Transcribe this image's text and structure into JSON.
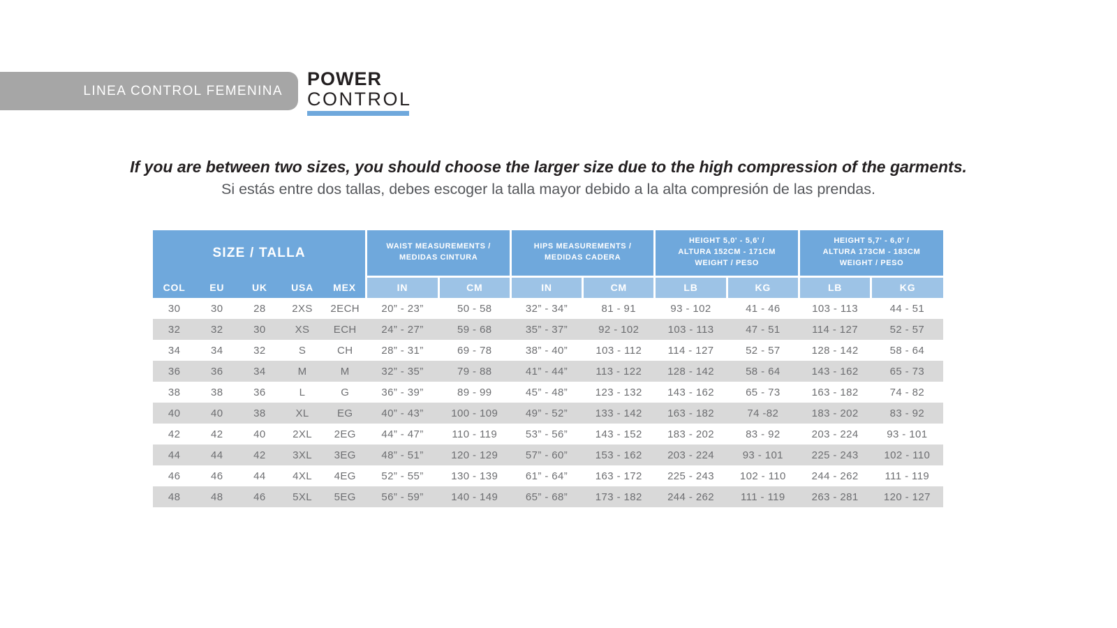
{
  "banner": {
    "label": "LINEA CONTROL FEMENINA",
    "bg_color": "#a6a6a6"
  },
  "logo": {
    "line1": "POWER",
    "line2": "CONTROL",
    "underline_color": "#6fa8dc"
  },
  "notice": {
    "en": "If you are between two sizes, you should choose the larger size due to the high compression of the garments.",
    "es": "Si estás entre dos tallas, debes escoger la talla mayor debido a la alta compresión de las prendas."
  },
  "size_table": {
    "colors": {
      "header_blue": "#6fa8dc",
      "subheader_blue": "#9dc3e6",
      "alt_row_gray": "#d9d9d9",
      "cell_text": "#6d6e71"
    },
    "size_group_label": "SIZE / TALLA",
    "size_columns": [
      "COL",
      "EU",
      "UK",
      "USA",
      "MEX"
    ],
    "groups": [
      {
        "lines": [
          "WAIST MEASUREMENTS /",
          "MEDIDAS CINTURA"
        ],
        "sub": [
          "IN",
          "CM"
        ]
      },
      {
        "lines": [
          "HIPS MEASUREMENTS /",
          "MEDIDAS CADERA"
        ],
        "sub": [
          "IN",
          "CM"
        ]
      },
      {
        "lines": [
          "HEIGHT 5,0' - 5,6' /",
          "ALTURA 152CM - 171CM",
          "WEIGHT / PESO"
        ],
        "sub": [
          "LB",
          "KG"
        ]
      },
      {
        "lines": [
          "HEIGHT 5,7' - 6,0' /",
          "ALTURA 173CM - 183CM",
          "WEIGHT / PESO"
        ],
        "sub": [
          "LB",
          "KG"
        ]
      }
    ],
    "rows": [
      [
        "30",
        "30",
        "28",
        "2XS",
        "2ECH",
        "20” - 23”",
        "50 - 58",
        "32” - 34”",
        "81 - 91",
        "93 - 102",
        "41 - 46",
        "103 - 113",
        "44 - 51"
      ],
      [
        "32",
        "32",
        "30",
        "XS",
        "ECH",
        "24” - 27”",
        "59 - 68",
        "35” - 37”",
        "92 - 102",
        "103 - 113",
        "47 - 51",
        "114 - 127",
        "52 - 57"
      ],
      [
        "34",
        "34",
        "32",
        "S",
        "CH",
        "28” - 31”",
        "69 - 78",
        "38” - 40”",
        "103 - 112",
        "114 - 127",
        "52 - 57",
        "128 - 142",
        "58 - 64"
      ],
      [
        "36",
        "36",
        "34",
        "M",
        "M",
        "32” - 35”",
        "79 - 88",
        "41” - 44”",
        "113 - 122",
        "128 - 142",
        "58 - 64",
        "143 - 162",
        "65 - 73"
      ],
      [
        "38",
        "38",
        "36",
        "L",
        "G",
        "36” - 39”",
        "89 - 99",
        "45” - 48”",
        "123 - 132",
        "143 - 162",
        "65 - 73",
        "163 - 182",
        "74 - 82"
      ],
      [
        "40",
        "40",
        "38",
        "XL",
        "EG",
        "40” - 43”",
        "100 - 109",
        "49” - 52”",
        "133 - 142",
        "163 - 182",
        "74 -82",
        "183 - 202",
        "83 - 92"
      ],
      [
        "42",
        "42",
        "40",
        "2XL",
        "2EG",
        "44” - 47”",
        "110 - 119",
        "53” - 56”",
        "143 - 152",
        "183 - 202",
        "83 - 92",
        "203 - 224",
        "93 - 101"
      ],
      [
        "44",
        "44",
        "42",
        "3XL",
        "3EG",
        "48” - 51”",
        "120 - 129",
        "57” - 60”",
        "153 - 162",
        "203 - 224",
        "93 - 101",
        "225 - 243",
        "102 - 110"
      ],
      [
        "46",
        "46",
        "44",
        "4XL",
        "4EG",
        "52” - 55”",
        "130 - 139",
        "61” - 64”",
        "163 - 172",
        "225 - 243",
        "102 - 110",
        "244 - 262",
        "111 - 119"
      ],
      [
        "48",
        "48",
        "46",
        "5XL",
        "5EG",
        "56” - 59”",
        "140 - 149",
        "65” - 68”",
        "173 - 182",
        "244 - 262",
        "111 - 119",
        "263 - 281",
        "120 - 127"
      ]
    ]
  }
}
